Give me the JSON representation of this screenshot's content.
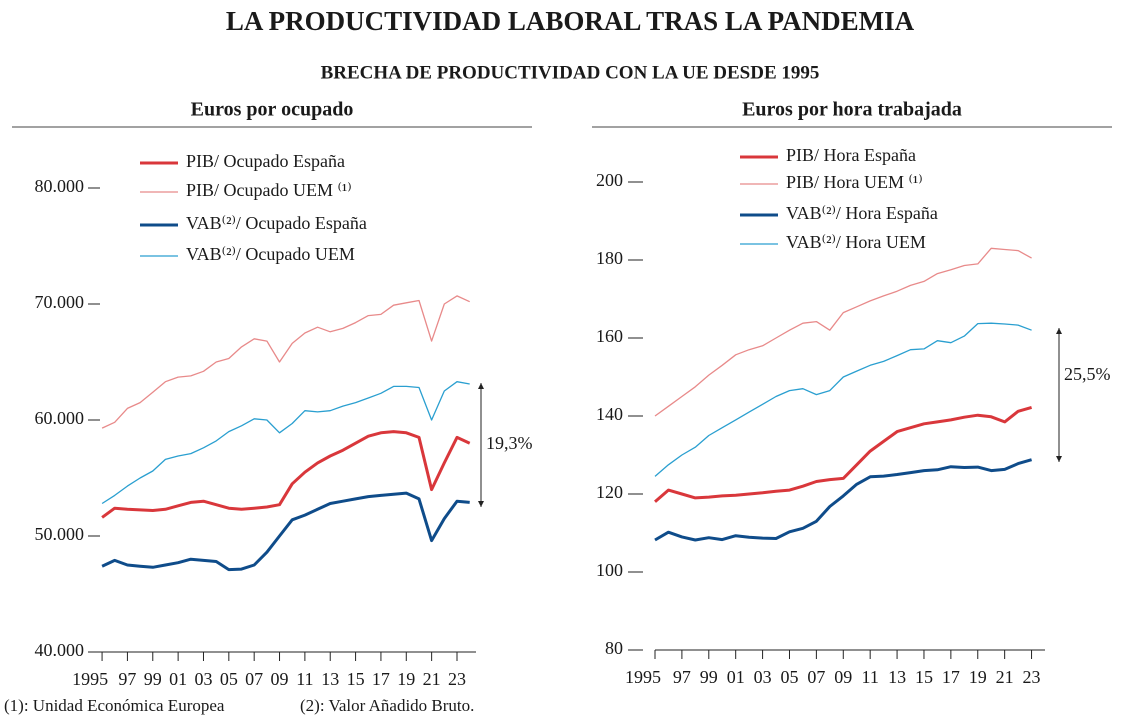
{
  "title": "LA PRODUCTIVIDAD LABORAL TRAS LA PANDEMIA",
  "subtitle": "BRECHA DE PRODUCTIVIDAD CON LA UE DESDE 1995",
  "footnotes": [
    "(1): Unidad Económica Europea",
    "(2): Valor Añadido Bruto."
  ],
  "chart_data": [
    {
      "type": "line",
      "title": "Euros por ocupado",
      "x": [
        1995,
        1996,
        1997,
        1998,
        1999,
        2000,
        2001,
        2002,
        2003,
        2004,
        2005,
        2006,
        2007,
        2008,
        2009,
        2010,
        2011,
        2012,
        2013,
        2014,
        2015,
        2016,
        2017,
        2018,
        2019,
        2020,
        2021,
        2022,
        2023,
        2024
      ],
      "series": [
        {
          "name": "PIB/ Ocupado España",
          "color": "#d9373b",
          "width": 3,
          "values": [
            51600,
            52400,
            52300,
            52250,
            52200,
            52300,
            52600,
            52900,
            53000,
            52700,
            52400,
            52300,
            52400,
            52500,
            52700,
            54500,
            55500,
            56300,
            56900,
            57400,
            58000,
            58600,
            58900,
            59000,
            58900,
            58500,
            54000,
            56300,
            58500,
            58000
          ]
        },
        {
          "name": "PIB/ Ocupado UEM ⁽¹⁾",
          "color": "#e88a8a",
          "width": 1.3,
          "values": [
            59300,
            59800,
            61000,
            61500,
            62400,
            63300,
            63700,
            63800,
            64200,
            65000,
            65300,
            66300,
            67000,
            66800,
            65000,
            66600,
            67500,
            68000,
            67600,
            67900,
            68400,
            69000,
            69100,
            69900,
            70100,
            70300,
            66800,
            70000,
            70700,
            70200
          ]
        },
        {
          "name": "VAB⁽²⁾/ Ocupado España",
          "color": "#0f4c8a",
          "width": 3,
          "values": [
            47400,
            47900,
            47500,
            47400,
            47300,
            47500,
            47700,
            48000,
            47900,
            47800,
            47100,
            47150,
            47500,
            48600,
            50000,
            51400,
            51800,
            52300,
            52800,
            53000,
            53200,
            53400,
            53500,
            53600,
            53700,
            53200,
            49600,
            51500,
            53000,
            52900
          ]
        },
        {
          "name": "VAB⁽²⁾/ Ocupado UEM",
          "color": "#2a9fd0",
          "width": 1.3,
          "values": [
            52800,
            53500,
            54300,
            55000,
            55600,
            56600,
            56900,
            57100,
            57600,
            58200,
            59000,
            59500,
            60100,
            60000,
            58900,
            59700,
            60800,
            60700,
            60800,
            61200,
            61500,
            61900,
            62300,
            62900,
            62900,
            62800,
            60000,
            62500,
            63300,
            63100
          ]
        }
      ],
      "xlim": [
        1994.6,
        2024.5
      ],
      "xticks": [
        1995,
        {
          "value": 1997,
          "label": "97"
        },
        {
          "value": 1999,
          "label": "99"
        },
        {
          "value": 2001,
          "label": "01"
        },
        {
          "value": 2003,
          "label": "03"
        },
        {
          "value": 2005,
          "label": "05"
        },
        {
          "value": 2007,
          "label": "07"
        },
        {
          "value": 2009,
          "label": "09"
        },
        {
          "value": 2011,
          "label": "11"
        },
        {
          "value": 2013,
          "label": "13"
        },
        {
          "value": 2015,
          "label": "15"
        },
        {
          "value": 2017,
          "label": "17"
        },
        {
          "value": 2019,
          "label": "19"
        },
        {
          "value": 2021,
          "label": "21"
        },
        {
          "value": 2023,
          "label": "23"
        }
      ],
      "ylim": [
        40000,
        80000
      ],
      "yticks": [
        {
          "value": 40000,
          "label": "40.000"
        },
        {
          "value": 50000,
          "label": "50.000"
        },
        {
          "value": 60000,
          "label": "60.000"
        },
        {
          "value": 70000,
          "label": "70.000"
        },
        {
          "value": 80000,
          "label": "80.000"
        }
      ],
      "annotation": "19,3%",
      "legend": "top-left"
    },
    {
      "type": "line",
      "title": "Euros por hora trabajada",
      "x": [
        1995,
        1996,
        1997,
        1998,
        1999,
        2000,
        2001,
        2002,
        2003,
        2004,
        2005,
        2006,
        2007,
        2008,
        2009,
        2010,
        2011,
        2012,
        2013,
        2014,
        2015,
        2016,
        2017,
        2018,
        2019,
        2020,
        2021,
        2022,
        2023
      ],
      "series": [
        {
          "name": "PIB/ Hora España",
          "color": "#d9373b",
          "width": 3,
          "values": [
            118,
            121,
            120,
            119,
            119.2,
            119.5,
            119.7,
            120,
            120.3,
            120.7,
            121,
            122,
            123.2,
            123.7,
            124,
            127.5,
            131,
            133.5,
            136,
            137,
            138,
            138.5,
            139,
            139.7,
            140.2,
            139.8,
            138.5,
            141.2,
            142.2
          ]
        },
        {
          "name": "PIB/ Hora UEM ⁽¹⁾",
          "color": "#e88a8a",
          "width": 1.3,
          "values": [
            140,
            142.5,
            145,
            147.5,
            150.5,
            153,
            155.7,
            157,
            158,
            160,
            162,
            163.8,
            164.2,
            162,
            166.5,
            168,
            169.5,
            170.8,
            172,
            173.5,
            174.5,
            176.5,
            177.5,
            178.6,
            179,
            183,
            182.7,
            182.4,
            180.5
          ]
        },
        {
          "name": "VAB⁽²⁾/ Hora España",
          "color": "#0f4c8a",
          "width": 3,
          "values": [
            108.2,
            110.2,
            109,
            108.2,
            108.8,
            108.3,
            109.3,
            108.9,
            108.7,
            108.6,
            110.3,
            111.2,
            113,
            116.8,
            119.5,
            122.5,
            124.4,
            124.6,
            125,
            125.5,
            126,
            126.2,
            127,
            126.8,
            126.9,
            126,
            126.3,
            127.8,
            128.8
          ]
        },
        {
          "name": "VAB⁽²⁾/ Hora UEM",
          "color": "#2a9fd0",
          "width": 1.3,
          "values": [
            124.5,
            127.5,
            130,
            132,
            135,
            137,
            139,
            141,
            143,
            145,
            146.5,
            147,
            145.5,
            146.5,
            150,
            151.5,
            153,
            154,
            155.5,
            157,
            157.2,
            159.3,
            158.8,
            160.5,
            163.7,
            163.8,
            163.6,
            163.3,
            162
          ]
        }
      ],
      "xlim": [
        1995,
        2024
      ],
      "xticks": [
        1995,
        {
          "value": 1997,
          "label": "97"
        },
        {
          "value": 1999,
          "label": "99"
        },
        {
          "value": 2001,
          "label": "01"
        },
        {
          "value": 2003,
          "label": "03"
        },
        {
          "value": 2005,
          "label": "05"
        },
        {
          "value": 2007,
          "label": "07"
        },
        {
          "value": 2009,
          "label": "09"
        },
        {
          "value": 2011,
          "label": "11"
        },
        {
          "value": 2013,
          "label": "13"
        },
        {
          "value": 2015,
          "label": "15"
        },
        {
          "value": 2017,
          "label": "17"
        },
        {
          "value": 2019,
          "label": "19"
        },
        {
          "value": 2021,
          "label": "21"
        },
        {
          "value": 2023,
          "label": "23"
        }
      ],
      "ylim": [
        80,
        200
      ],
      "yticks": [
        80,
        100,
        120,
        140,
        160,
        180,
        200
      ],
      "annotation": "25,5%",
      "legend": "top-left"
    }
  ]
}
